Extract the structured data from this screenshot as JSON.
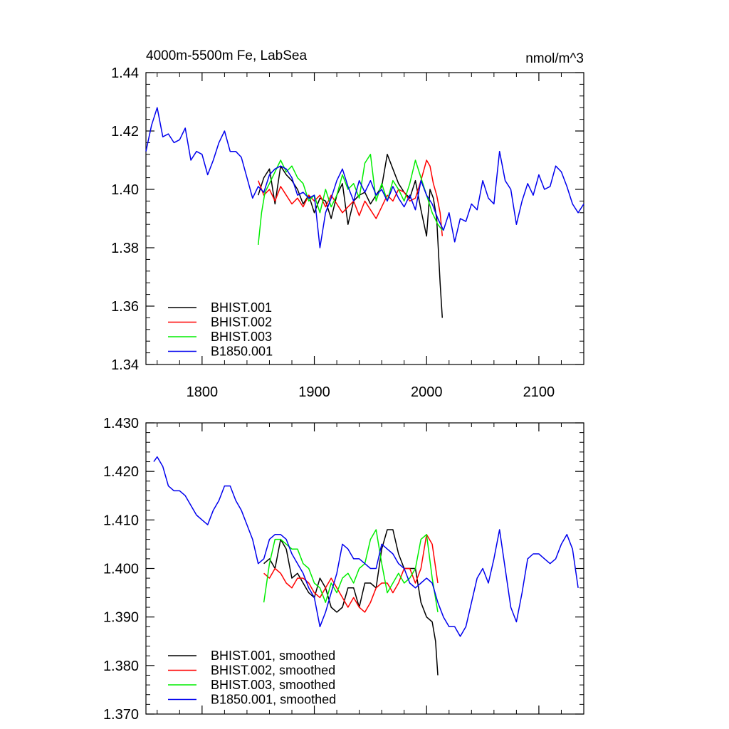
{
  "chart_data": [
    {
      "type": "line",
      "title": "4000m-5500m Fe, LabSea",
      "units": "nmol/m^3",
      "xlim": [
        1750,
        2140
      ],
      "ylim": [
        1.34,
        1.44
      ],
      "xticks": [
        1800,
        1900,
        2000,
        2100
      ],
      "xtick_labels": [
        "1800",
        "1900",
        "2000",
        "2100"
      ],
      "yticks": [
        1.34,
        1.36,
        1.38,
        1.4,
        1.42,
        1.44
      ],
      "ytick_labels": [
        "1.34",
        "1.36",
        "1.38",
        "1.40",
        "1.42",
        "1.44"
      ],
      "legend_position": "bottom-left",
      "series": [
        {
          "name": "BHIST.001",
          "color": "#000000",
          "x": [
            1850,
            1855,
            1860,
            1865,
            1870,
            1875,
            1880,
            1885,
            1890,
            1895,
            1900,
            1905,
            1910,
            1915,
            1920,
            1925,
            1930,
            1935,
            1940,
            1945,
            1950,
            1955,
            1960,
            1965,
            1970,
            1975,
            1980,
            1985,
            1990,
            1995,
            2000,
            2003,
            2006,
            2009,
            2012,
            2014
          ],
          "y": [
            1.398,
            1.404,
            1.407,
            1.395,
            1.408,
            1.405,
            1.403,
            1.4,
            1.395,
            1.398,
            1.392,
            1.397,
            1.396,
            1.39,
            1.398,
            1.402,
            1.388,
            1.396,
            1.398,
            1.399,
            1.395,
            1.398,
            1.401,
            1.412,
            1.407,
            1.402,
            1.399,
            1.397,
            1.403,
            1.393,
            1.384,
            1.4,
            1.397,
            1.39,
            1.368,
            1.356
          ]
        },
        {
          "name": "BHIST.002",
          "color": "#ff0000",
          "x": [
            1850,
            1855,
            1860,
            1865,
            1870,
            1875,
            1880,
            1885,
            1890,
            1895,
            1900,
            1905,
            1910,
            1915,
            1920,
            1925,
            1930,
            1935,
            1940,
            1945,
            1950,
            1955,
            1960,
            1965,
            1970,
            1975,
            1980,
            1985,
            1990,
            1995,
            2000,
            2003,
            2006,
            2009,
            2012,
            2014
          ],
          "y": [
            1.403,
            1.398,
            1.4,
            1.396,
            1.401,
            1.398,
            1.395,
            1.397,
            1.394,
            1.398,
            1.396,
            1.398,
            1.394,
            1.398,
            1.395,
            1.392,
            1.394,
            1.396,
            1.391,
            1.396,
            1.393,
            1.39,
            1.394,
            1.398,
            1.396,
            1.4,
            1.399,
            1.396,
            1.397,
            1.403,
            1.41,
            1.408,
            1.402,
            1.398,
            1.392,
            1.384
          ]
        },
        {
          "name": "BHIST.003",
          "color": "#00ee00",
          "x": [
            1850,
            1853,
            1856,
            1860,
            1865,
            1870,
            1875,
            1880,
            1885,
            1890,
            1895,
            1900,
            1905,
            1910,
            1915,
            1920,
            1925,
            1930,
            1935,
            1940,
            1945,
            1950,
            1955,
            1960,
            1965,
            1970,
            1975,
            1980,
            1985,
            1990,
            1995,
            2000,
            2005,
            2010,
            2014
          ],
          "y": [
            1.381,
            1.392,
            1.399,
            1.402,
            1.406,
            1.41,
            1.406,
            1.408,
            1.404,
            1.402,
            1.396,
            1.398,
            1.392,
            1.4,
            1.394,
            1.398,
            1.405,
            1.4,
            1.402,
            1.397,
            1.409,
            1.412,
            1.396,
            1.402,
            1.396,
            1.403,
            1.4,
            1.396,
            1.402,
            1.41,
            1.404,
            1.398,
            1.392,
            1.388,
            1.386
          ]
        },
        {
          "name": "B1850.001",
          "color": "#0000ee",
          "x": [
            1750,
            1755,
            1760,
            1765,
            1770,
            1775,
            1780,
            1785,
            1790,
            1795,
            1800,
            1805,
            1810,
            1815,
            1820,
            1825,
            1830,
            1835,
            1840,
            1845,
            1850,
            1855,
            1860,
            1865,
            1870,
            1875,
            1880,
            1885,
            1890,
            1895,
            1900,
            1905,
            1910,
            1915,
            1920,
            1925,
            1930,
            1935,
            1940,
            1945,
            1950,
            1955,
            1960,
            1965,
            1970,
            1975,
            1980,
            1985,
            1990,
            1995,
            2000,
            2005,
            2010,
            2015,
            2020,
            2025,
            2030,
            2035,
            2040,
            2045,
            2050,
            2055,
            2060,
            2065,
            2070,
            2075,
            2080,
            2085,
            2090,
            2095,
            2100,
            2105,
            2110,
            2115,
            2120,
            2125,
            2130,
            2135,
            2140
          ],
          "y": [
            1.413,
            1.422,
            1.428,
            1.418,
            1.419,
            1.416,
            1.417,
            1.421,
            1.41,
            1.413,
            1.412,
            1.405,
            1.41,
            1.416,
            1.42,
            1.413,
            1.413,
            1.411,
            1.404,
            1.397,
            1.401,
            1.399,
            1.405,
            1.407,
            1.408,
            1.407,
            1.404,
            1.398,
            1.399,
            1.397,
            1.398,
            1.38,
            1.392,
            1.397,
            1.403,
            1.407,
            1.401,
            1.396,
            1.403,
            1.399,
            1.403,
            1.398,
            1.4,
            1.396,
            1.401,
            1.397,
            1.394,
            1.398,
            1.393,
            1.403,
            1.398,
            1.395,
            1.39,
            1.386,
            1.392,
            1.382,
            1.39,
            1.389,
            1.395,
            1.393,
            1.403,
            1.397,
            1.395,
            1.413,
            1.403,
            1.4,
            1.388,
            1.396,
            1.402,
            1.398,
            1.405,
            1.4,
            1.401,
            1.408,
            1.406,
            1.401,
            1.395,
            1.392,
            1.395
          ]
        }
      ]
    },
    {
      "type": "line",
      "xlim": [
        1750,
        2140
      ],
      "ylim": [
        1.37,
        1.43
      ],
      "xticks": [
        1800,
        1900,
        2000,
        2100
      ],
      "yticks": [
        1.37,
        1.38,
        1.39,
        1.4,
        1.41,
        1.42,
        1.43
      ],
      "ytick_labels": [
        "1.370",
        "1.380",
        "1.390",
        "1.400",
        "1.410",
        "1.420",
        "1.430"
      ],
      "legend_position": "bottom-left",
      "series": [
        {
          "name": "BHIST.001, smoothed",
          "color": "#000000",
          "x": [
            1855,
            1860,
            1865,
            1870,
            1875,
            1880,
            1885,
            1890,
            1895,
            1900,
            1905,
            1910,
            1915,
            1920,
            1925,
            1930,
            1935,
            1940,
            1945,
            1950,
            1955,
            1960,
            1965,
            1970,
            1975,
            1980,
            1985,
            1990,
            1995,
            2000,
            2005,
            2008,
            2010
          ],
          "y": [
            1.401,
            1.402,
            1.4,
            1.406,
            1.404,
            1.398,
            1.399,
            1.397,
            1.395,
            1.394,
            1.398,
            1.396,
            1.392,
            1.391,
            1.392,
            1.396,
            1.396,
            1.392,
            1.397,
            1.397,
            1.396,
            1.404,
            1.408,
            1.408,
            1.403,
            1.4,
            1.4,
            1.4,
            1.393,
            1.39,
            1.389,
            1.385,
            1.378
          ]
        },
        {
          "name": "BHIST.002, smoothed",
          "color": "#ff0000",
          "x": [
            1855,
            1860,
            1865,
            1870,
            1875,
            1880,
            1885,
            1890,
            1895,
            1900,
            1905,
            1910,
            1915,
            1920,
            1925,
            1930,
            1935,
            1940,
            1945,
            1950,
            1955,
            1960,
            1965,
            1970,
            1975,
            1980,
            1985,
            1990,
            1995,
            2000,
            2005,
            2010
          ],
          "y": [
            1.399,
            1.398,
            1.4,
            1.399,
            1.397,
            1.396,
            1.398,
            1.398,
            1.397,
            1.395,
            1.394,
            1.396,
            1.398,
            1.396,
            1.394,
            1.392,
            1.394,
            1.392,
            1.391,
            1.393,
            1.396,
            1.397,
            1.397,
            1.395,
            1.397,
            1.4,
            1.4,
            1.397,
            1.4,
            1.407,
            1.405,
            1.397
          ]
        },
        {
          "name": "BHIST.003, smoothed",
          "color": "#00ee00",
          "x": [
            1855,
            1860,
            1865,
            1870,
            1875,
            1880,
            1885,
            1890,
            1895,
            1900,
            1905,
            1910,
            1915,
            1920,
            1925,
            1930,
            1935,
            1940,
            1945,
            1950,
            1955,
            1960,
            1965,
            1970,
            1975,
            1980,
            1985,
            1990,
            1995,
            2000,
            2005,
            2010
          ],
          "y": [
            1.393,
            1.401,
            1.406,
            1.406,
            1.405,
            1.404,
            1.404,
            1.401,
            1.4,
            1.397,
            1.396,
            1.393,
            1.397,
            1.395,
            1.398,
            1.399,
            1.397,
            1.4,
            1.401,
            1.406,
            1.408,
            1.401,
            1.395,
            1.397,
            1.399,
            1.397,
            1.398,
            1.4,
            1.406,
            1.407,
            1.398,
            1.391
          ]
        },
        {
          "name": "B1850.001, smoothed",
          "color": "#0000ee",
          "x": [
            1757,
            1760,
            1765,
            1770,
            1775,
            1780,
            1785,
            1790,
            1795,
            1800,
            1805,
            1810,
            1815,
            1820,
            1825,
            1830,
            1835,
            1840,
            1845,
            1850,
            1855,
            1860,
            1865,
            1870,
            1875,
            1880,
            1885,
            1890,
            1895,
            1900,
            1905,
            1910,
            1915,
            1920,
            1925,
            1930,
            1935,
            1940,
            1945,
            1950,
            1955,
            1960,
            1965,
            1970,
            1975,
            1980,
            1985,
            1990,
            1995,
            2000,
            2005,
            2010,
            2015,
            2020,
            2025,
            2030,
            2035,
            2040,
            2045,
            2050,
            2055,
            2060,
            2065,
            2070,
            2075,
            2080,
            2085,
            2090,
            2095,
            2100,
            2105,
            2110,
            2115,
            2120,
            2125,
            2130,
            2135
          ],
          "y": [
            1.422,
            1.423,
            1.421,
            1.417,
            1.416,
            1.416,
            1.415,
            1.413,
            1.411,
            1.41,
            1.409,
            1.412,
            1.414,
            1.417,
            1.417,
            1.414,
            1.412,
            1.409,
            1.406,
            1.401,
            1.402,
            1.406,
            1.407,
            1.407,
            1.406,
            1.403,
            1.401,
            1.399,
            1.396,
            1.394,
            1.388,
            1.391,
            1.395,
            1.399,
            1.405,
            1.404,
            1.402,
            1.402,
            1.401,
            1.4,
            1.4,
            1.405,
            1.404,
            1.403,
            1.401,
            1.4,
            1.397,
            1.396,
            1.397,
            1.398,
            1.397,
            1.393,
            1.39,
            1.388,
            1.388,
            1.386,
            1.388,
            1.393,
            1.398,
            1.4,
            1.397,
            1.402,
            1.408,
            1.4,
            1.392,
            1.389,
            1.395,
            1.402,
            1.403,
            1.403,
            1.402,
            1.401,
            1.402,
            1.405,
            1.407,
            1.404,
            1.396
          ]
        }
      ]
    }
  ]
}
